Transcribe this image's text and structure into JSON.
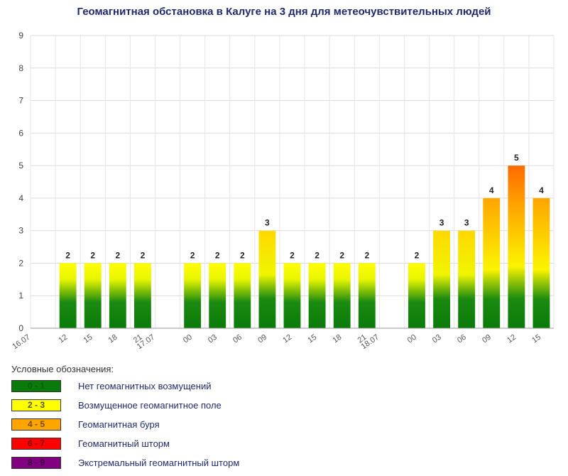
{
  "title": "Геомагнитная обстановка в Калуге на 3 дня для метеочувствительных людей",
  "chart_data": {
    "type": "bar",
    "title": "Геомагнитная обстановка в Калуге на 3 дня для метеочувствительных людей",
    "xlabel": "",
    "ylabel": "",
    "ylim": [
      0,
      9
    ],
    "yticks": [
      0,
      1,
      2,
      3,
      4,
      5,
      6,
      7,
      8,
      9
    ],
    "grid": true,
    "categories": [
      "16.07",
      "12",
      "15",
      "18",
      "21",
      "17.07",
      "00",
      "03",
      "06",
      "09",
      "12",
      "15",
      "18",
      "21",
      "18.07",
      "00",
      "03",
      "06",
      "09",
      "12",
      "15"
    ],
    "values": [
      null,
      2,
      2,
      2,
      2,
      null,
      2,
      2,
      2,
      3,
      2,
      2,
      2,
      2,
      null,
      2,
      3,
      3,
      4,
      5,
      4
    ],
    "data_labels": [
      "",
      "2",
      "2",
      "2",
      "2",
      "",
      "2",
      "2",
      "2",
      "3",
      "2",
      "2",
      "2",
      "2",
      "",
      "2",
      "3",
      "3",
      "4",
      "5",
      "4"
    ]
  },
  "legend": {
    "title": "Условные обозначения:",
    "items": [
      {
        "range": "0 - 1",
        "label": "Нет геомагнитных возмущений",
        "color": "#0a7a0a",
        "text_color": "#0b5b0b"
      },
      {
        "range": "2 - 3",
        "label": "Возмущенное геомагнитное поле",
        "color": "#ffff00",
        "text_color": "#555500"
      },
      {
        "range": "4 - 5",
        "label": "Геомагнитная буря",
        "color": "#ffa500",
        "text_color": "#7a4a00"
      },
      {
        "range": "6 - 7",
        "label": "Геомагнитный шторм",
        "color": "#ff0000",
        "text_color": "#7a0000"
      },
      {
        "range": "8 - 9",
        "label": "Экстремальный геомагнитный шторм",
        "color": "#800080",
        "text_color": "#3b003b"
      }
    ]
  }
}
